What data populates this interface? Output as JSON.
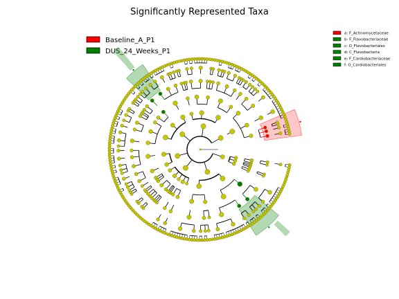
{
  "chart_data": {
    "type": "cladogram",
    "title": "Significantly Represented Taxa",
    "groups": [
      {
        "name": "Baseline_A_P1",
        "color": "#ff0000"
      },
      {
        "name": "DUS_24_Weeks_P1",
        "color": "#008000"
      }
    ],
    "biomarkers": [
      {
        "label": "a: F_Actinomycetaceae",
        "group": "Baseline_A_P1",
        "color": "#ff0000"
      },
      {
        "label": "b: F_Flavobacteriaceae",
        "group": "DUS_24_Weeks_P1",
        "color": "#008000"
      },
      {
        "label": "c: O_Flavobacteriales",
        "group": "DUS_24_Weeks_P1",
        "color": "#008000"
      },
      {
        "label": "d: C_Flavobacteria",
        "group": "DUS_24_Weeks_P1",
        "color": "#008000"
      },
      {
        "label": "e: F_Cardiobacteriaceae",
        "group": "DUS_24_Weeks_P1",
        "color": "#008000"
      },
      {
        "label": "f: O_Cardiobacteriales",
        "group": "DUS_24_Weeks_P1",
        "color": "#008000"
      }
    ],
    "non_significant_color": "#c8c800",
    "highlight_letters": [
      "a",
      "b",
      "e"
    ]
  }
}
